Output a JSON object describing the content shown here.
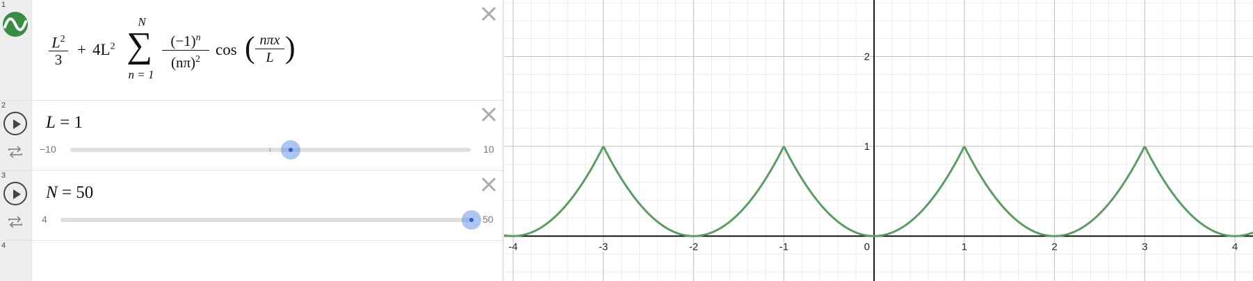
{
  "expressions": [
    {
      "index": "1",
      "formula": {
        "a_num": "L",
        "a_num_exp": "2",
        "a_den": "3",
        "plus": "+",
        "coef": "4L",
        "coef_exp": "2",
        "sum_top": "N",
        "sum_bottom": "n = 1",
        "sigma": "∑",
        "b_num": "(−1)",
        "b_num_exp": "n",
        "b_den": "(nπ)",
        "b_den_exp": "2",
        "cos": "cos",
        "c_num": "nπx",
        "c_den": "L",
        "open_paren": "(",
        "close_paren": ")"
      },
      "color": "#388c46"
    },
    {
      "index": "2",
      "var": "L",
      "eq": "=",
      "value": "1",
      "slider": {
        "min_label": "−10",
        "max_label": "10",
        "min": -10,
        "max": 10,
        "value": 1
      }
    },
    {
      "index": "3",
      "var": "N",
      "eq": "=",
      "value": "50",
      "slider": {
        "min_label": "4",
        "max_label": "50",
        "min": 4,
        "max": 50,
        "value": 50
      }
    },
    {
      "index": "4"
    }
  ],
  "graph": {
    "x_ticks": [
      "-4",
      "-3",
      "-2",
      "-1",
      "0",
      "1",
      "2",
      "3",
      "4"
    ],
    "y_ticks": [
      "1",
      "2"
    ],
    "x_range": [
      -4.1,
      4.2
    ],
    "y_range": [
      -0.5,
      2.63
    ],
    "curve_color": "#5a9d63",
    "axis_color": "#000000",
    "minor_grid_step": 0.2,
    "major_grid_step": 1
  }
}
